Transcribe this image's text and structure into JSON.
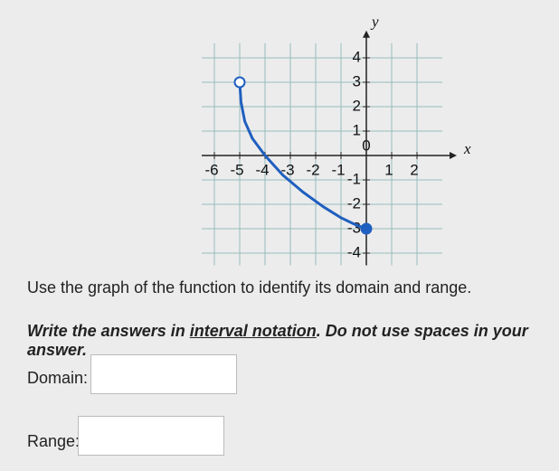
{
  "chart_data": {
    "type": "line",
    "x_label": "x",
    "y_label": "y",
    "x": [
      -5,
      -4.95,
      -4.8,
      -4.5,
      -4,
      -3.3,
      -2.5,
      -1.7,
      -1,
      -0.4,
      0
    ],
    "values": [
      3,
      2.2,
      1.4,
      0.7,
      0,
      -0.8,
      -1.5,
      -2.1,
      -2.55,
      -2.85,
      -3
    ],
    "color": "#1f5fbf",
    "markers": [
      "open",
      "closed"
    ],
    "xlim": [
      -6.5,
      3
    ],
    "ylim": [
      -4.5,
      4.6
    ],
    "xticks": [
      -6,
      -5,
      -4,
      -3,
      -2,
      -1,
      0,
      1,
      2
    ],
    "yticks": [
      -4,
      -3,
      -2,
      -1,
      1,
      2,
      3,
      4
    ],
    "grid": true
  },
  "prompt": "Use the graph of the function to identify its domain and range.",
  "instructions": [
    "Write the answers in ",
    "interval notation",
    ". Do not use spaces in your answer."
  ],
  "fields": [
    "Domain:",
    "Range:"
  ]
}
